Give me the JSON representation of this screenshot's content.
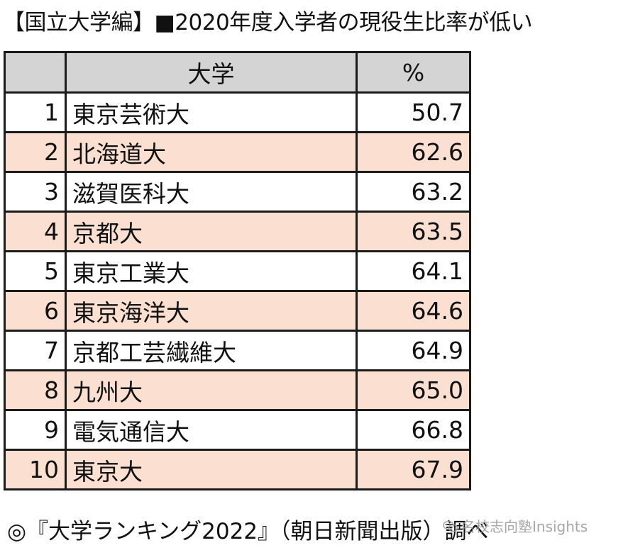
{
  "title": "【国立大学編】■2020年度入学者の現役生比率が低い",
  "table": {
    "headers": [
      "",
      "大学",
      "%"
    ],
    "rows": [
      {
        "rank": "1",
        "name": "東京芸術大",
        "pct": "50.7"
      },
      {
        "rank": "2",
        "name": "北海道大",
        "pct": "62.6"
      },
      {
        "rank": "3",
        "name": "滋賀医科大",
        "pct": "63.2"
      },
      {
        "rank": "4",
        "name": "京都大",
        "pct": "63.5"
      },
      {
        "rank": "5",
        "name": "東京工業大",
        "pct": "64.1"
      },
      {
        "rank": "6",
        "name": "東京海洋大",
        "pct": "64.6"
      },
      {
        "rank": "7",
        "name": "京都工芸繊維大",
        "pct": "64.9"
      },
      {
        "rank": "8",
        "name": "九州大",
        "pct": "65.0"
      },
      {
        "rank": "9",
        "name": "電気通信大",
        "pct": "66.8"
      },
      {
        "rank": "10",
        "name": "東京大",
        "pct": "67.9"
      }
    ]
  },
  "source": "◎『大学ランキング2022』（朝日新聞出版）調べ",
  "watermark": {
    "icon": "wechat-icon",
    "text": "名校志向塾Insights"
  },
  "colors": {
    "header_bg": "#d4d4d4",
    "shaded_row_bg": "#fbe0d2",
    "border": "#1a1a1a"
  }
}
